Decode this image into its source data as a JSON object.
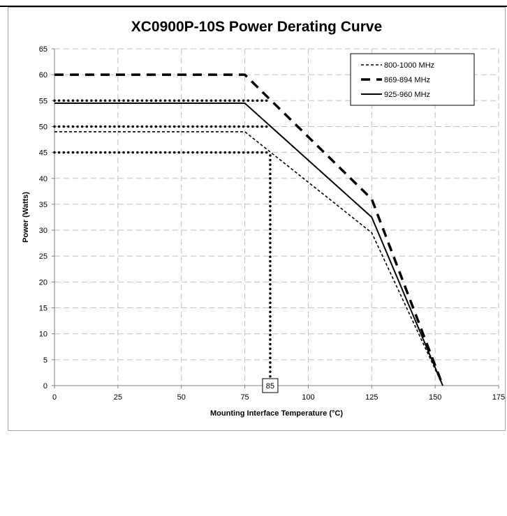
{
  "chart_data": {
    "type": "line",
    "title": "XC0900P-10S Power Derating Curve",
    "xlabel": "Mounting Interface Temperature (°C)",
    "ylabel": "Power (Watts)",
    "xlim": [
      0,
      175
    ],
    "ylim": [
      0,
      65
    ],
    "xticks": [
      0,
      25,
      50,
      75,
      100,
      125,
      150,
      175
    ],
    "yticks": [
      0,
      5,
      10,
      15,
      20,
      25,
      30,
      35,
      40,
      45,
      50,
      55,
      60,
      65
    ],
    "grid": true,
    "legend_position": "top-right",
    "series": [
      {
        "name": "800-1000 MHz",
        "style": "short-dash",
        "color": "#000000",
        "x": [
          0,
          75,
          125,
          153
        ],
        "y": [
          49,
          49,
          29.5,
          0
        ]
      },
      {
        "name": "869-894 MHz",
        "style": "long-dash",
        "color": "#000000",
        "x": [
          0,
          75,
          125,
          153
        ],
        "y": [
          60,
          60,
          36,
          0
        ]
      },
      {
        "name": "925-960 MHz",
        "style": "solid",
        "color": "#000000",
        "x": [
          0,
          75,
          125,
          153
        ],
        "y": [
          54.5,
          54.5,
          32.5,
          0
        ]
      }
    ],
    "reference_lines": [
      {
        "orientation": "horizontal",
        "y": 55,
        "x_to": 85
      },
      {
        "orientation": "horizontal",
        "y": 50,
        "x_to": 85
      },
      {
        "orientation": "horizontal",
        "y": 45,
        "x_to": 85
      },
      {
        "orientation": "vertical",
        "x": 85,
        "y_from": 0,
        "y_to": 45
      }
    ],
    "annotations": [
      {
        "text": "85",
        "x": 85,
        "y": 0
      }
    ]
  }
}
